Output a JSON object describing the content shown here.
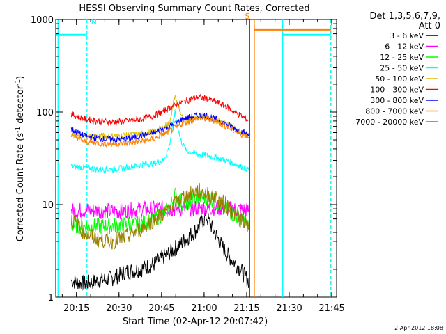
{
  "chart_data": {
    "type": "line",
    "title": "HESSI Observing Summary Count Rates, Corrected",
    "xlabel": "Start Time (02-Apr-12 20:07:42)",
    "ylabel_prefix": "Corrected Count Rate (s",
    "ylabel_sup1": "-1",
    "ylabel_middle": " detector",
    "ylabel_sup2": "-1",
    "ylabel_suffix": ")",
    "yscale": "log",
    "xlim_minutes": [
      0,
      99
    ],
    "ylim": [
      1,
      1000
    ],
    "x_ticks": [
      {
        "minutes": 7.3,
        "label": "20:15"
      },
      {
        "minutes": 22.3,
        "label": "20:30"
      },
      {
        "minutes": 37.3,
        "label": "20:45"
      },
      {
        "minutes": 52.3,
        "label": "21:00"
      },
      {
        "minutes": 67.3,
        "label": "21:15"
      },
      {
        "minutes": 82.3,
        "label": "21:30"
      },
      {
        "minutes": 97.3,
        "label": "21:45"
      }
    ],
    "y_ticks": [
      {
        "value": 1,
        "label": "1"
      },
      {
        "value": 10,
        "label": "10"
      },
      {
        "value": 100,
        "label": "100"
      },
      {
        "value": 1000,
        "label": "1000"
      }
    ],
    "legend_header": [
      "Det 1,3,5,6,7,9,",
      "Att 0"
    ],
    "series": [
      {
        "name": "3 - 6 keV",
        "color": "#000000",
        "x": [
          5.5,
          10,
          15,
          20,
          25,
          30,
          35,
          40,
          45,
          50,
          53,
          56,
          60,
          65,
          68
        ],
        "values": [
          1.5,
          1.4,
          1.5,
          1.6,
          1.9,
          2.0,
          2.3,
          3.0,
          4.0,
          5.5,
          7.5,
          5.0,
          3.0,
          2.0,
          1.5
        ]
      },
      {
        "name": "6 - 12 keV",
        "color": "#ff00ff",
        "x": [
          5.5,
          10,
          15,
          20,
          25,
          30,
          35,
          40,
          45,
          50,
          55,
          60,
          65,
          68
        ],
        "values": [
          8.5,
          8.7,
          8.6,
          8.5,
          8.6,
          8.8,
          9.0,
          9.0,
          9.0,
          9.2,
          9.2,
          9.0,
          8.8,
          8.7
        ]
      },
      {
        "name": "12 - 25 keV",
        "color": "#00ff00",
        "x": [
          5.5,
          10,
          15,
          20,
          25,
          30,
          35,
          40,
          42,
          45,
          50,
          53,
          56,
          60,
          65,
          68
        ],
        "values": [
          6.0,
          5.8,
          5.8,
          5.9,
          6.0,
          6.2,
          7.0,
          9.0,
          13.0,
          10.0,
          12.0,
          12.0,
          11.0,
          9.0,
          7.0,
          6.0
        ]
      },
      {
        "name": "25 - 50 keV",
        "color": "#00ffff",
        "x": [
          5.5,
          10,
          15,
          20,
          25,
          30,
          35,
          38,
          40,
          42,
          44,
          46,
          50,
          55,
          60,
          65,
          68
        ],
        "values": [
          26,
          25,
          24,
          24,
          25,
          27,
          28,
          30,
          42,
          100,
          50,
          38,
          35,
          33,
          30,
          26,
          24
        ]
      },
      {
        "name": "50 - 100 keV",
        "color": "#ddbb00",
        "x": [
          5.5,
          10,
          15,
          20,
          25,
          30,
          35,
          40,
          42,
          45,
          50,
          55,
          60,
          65,
          68
        ],
        "values": [
          55,
          55,
          55,
          55,
          56,
          58,
          62,
          75,
          150,
          80,
          90,
          85,
          75,
          62,
          58
        ]
      },
      {
        "name": "100 - 300 keV",
        "color": "#ff0000",
        "x": [
          5.5,
          10,
          15,
          20,
          25,
          30,
          35,
          40,
          45,
          50,
          53,
          56,
          60,
          65,
          68
        ],
        "values": [
          95,
          84,
          80,
          78,
          80,
          84,
          92,
          110,
          130,
          145,
          140,
          130,
          115,
          92,
          82
        ]
      },
      {
        "name": "300 - 800 keV",
        "color": "#0000ff",
        "x": [
          5.5,
          10,
          15,
          20,
          25,
          30,
          35,
          40,
          45,
          50,
          53,
          56,
          60,
          65,
          68
        ],
        "values": [
          65,
          55,
          52,
          50,
          51,
          55,
          60,
          70,
          85,
          92,
          92,
          85,
          75,
          62,
          57
        ]
      },
      {
        "name": "800 - 7000 keV",
        "color": "#ff8000",
        "x": [
          5.5,
          10,
          15,
          20,
          25,
          30,
          35,
          40,
          45,
          50,
          53,
          56,
          60,
          65,
          68
        ],
        "values": [
          58,
          48,
          46,
          45,
          46,
          48,
          52,
          62,
          76,
          85,
          85,
          80,
          70,
          58,
          54
        ]
      },
      {
        "name": "7000 - 20000 keV",
        "color": "#998000",
        "x": [
          5.5,
          10,
          15,
          20,
          25,
          30,
          35,
          40,
          45,
          50,
          53,
          56,
          60,
          65,
          68
        ],
        "values": [
          7.0,
          5.0,
          4.2,
          4.0,
          4.5,
          5.5,
          7.0,
          9.0,
          12.0,
          14.0,
          13.0,
          12.0,
          10.0,
          7.0,
          6.0
        ]
      }
    ],
    "flag_markers": [
      {
        "label": "N",
        "color": "#00ffff",
        "start": 0,
        "end": 11,
        "value": 680,
        "end_dash": true
      },
      {
        "label": "S",
        "color": "#ff8000",
        "start": 70,
        "end": 97,
        "value": 780
      },
      {
        "label": "",
        "color": "#00ffff",
        "start": 80,
        "end": 97,
        "value": 680,
        "end_dash": true
      }
    ],
    "vertical_markers": [
      {
        "minutes": 0.8,
        "color": "#00ffff",
        "style": "solid"
      },
      {
        "minutes": 11,
        "color": "#00ffff",
        "style": "dashed"
      },
      {
        "minutes": 68.3,
        "color": "#000000",
        "style": "solid"
      },
      {
        "minutes": 70,
        "color": "#ff8000",
        "style": "solid"
      },
      {
        "minutes": 80,
        "color": "#00ffff",
        "style": "solid"
      },
      {
        "minutes": 97,
        "color": "#ff8000",
        "style": "dashed"
      },
      {
        "minutes": 97,
        "color": "#00ffff",
        "style": "dashed"
      }
    ]
  },
  "footer": {
    "date_stamp": "2-Apr-2012 18:08"
  }
}
